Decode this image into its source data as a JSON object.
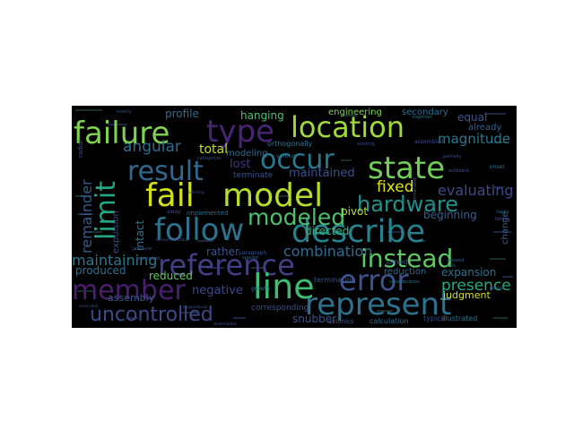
{
  "wordcloud": {
    "background": "#000000",
    "colormap": "viridis",
    "words": [
      {
        "text": "failure",
        "color": "#7fd34e"
      },
      {
        "text": "location",
        "color": "#9fda3a"
      },
      {
        "text": "type",
        "color": "#482475"
      },
      {
        "text": "occur",
        "color": "#2a788e"
      },
      {
        "text": "state",
        "color": "#6ece58"
      },
      {
        "text": "result",
        "color": "#31688e"
      },
      {
        "text": "limit",
        "color": "#22a884"
      },
      {
        "text": "fail",
        "color": "#d0e11c"
      },
      {
        "text": "model",
        "color": "#b5de2b"
      },
      {
        "text": "hardware",
        "color": "#20928c"
      },
      {
        "text": "follow",
        "color": "#2c728e"
      },
      {
        "text": "describe",
        "color": "#26828e"
      },
      {
        "text": "modeled",
        "color": "#4ac16d"
      },
      {
        "text": "reference",
        "color": "#433e85"
      },
      {
        "text": "instead",
        "color": "#5ec962"
      },
      {
        "text": "error",
        "color": "#3b528b"
      },
      {
        "text": "member",
        "color": "#481f70"
      },
      {
        "text": "line",
        "color": "#3dbc74"
      },
      {
        "text": "represent",
        "color": "#2c728e"
      },
      {
        "text": "uncontrolled",
        "color": "#3e4989"
      },
      {
        "text": "remainder",
        "color": "#365c8d"
      },
      {
        "text": "maintaining",
        "color": "#2a788e"
      },
      {
        "text": "combination",
        "color": "#2f6c8e"
      },
      {
        "text": "presence",
        "color": "#25ac82"
      },
      {
        "text": "fixed",
        "color": "#dde318"
      },
      {
        "text": "angular",
        "color": "#2f6c8e"
      },
      {
        "text": "total",
        "color": "#c2df23"
      },
      {
        "text": "hanging",
        "color": "#4ac16d"
      },
      {
        "text": "profile",
        "color": "#2f6c8e"
      },
      {
        "text": "engineering",
        "color": "#7fd34e"
      },
      {
        "text": "equal",
        "color": "#39568c"
      },
      {
        "text": "magnitude",
        "color": "#2a788e"
      },
      {
        "text": "evaluating",
        "color": "#3e4989"
      },
      {
        "text": "maintained",
        "color": "#3b528b"
      },
      {
        "text": "lost",
        "color": "#46327e"
      },
      {
        "text": "directed",
        "color": "#35b779"
      },
      {
        "text": "pivot",
        "color": "#b5de2b"
      },
      {
        "text": "beginning",
        "color": "#355f8d"
      },
      {
        "text": "produced",
        "color": "#2d708e"
      },
      {
        "text": "reduced",
        "color": "#5ec962"
      },
      {
        "text": "negative",
        "color": "#3e4989"
      },
      {
        "text": "rather",
        "color": "#3b528b"
      },
      {
        "text": "assembly",
        "color": "#375b8d"
      },
      {
        "text": "snubber",
        "color": "#3b528b"
      },
      {
        "text": "expansion",
        "color": "#2c728e"
      },
      {
        "text": "judgment",
        "color": "#d5e21a"
      },
      {
        "text": "reduction",
        "color": "#2f6c8e"
      },
      {
        "text": "corresponding",
        "color": "#3a538b"
      },
      {
        "text": "modeling",
        "color": "#2f6c8e"
      },
      {
        "text": "terminate",
        "color": "#3b528b"
      },
      {
        "text": "intact",
        "color": "#2c728e"
      },
      {
        "text": "change",
        "color": "#35608d"
      },
      {
        "text": "expulsion",
        "color": "#3e4989"
      },
      {
        "text": "secondary",
        "color": "#2f6c8e"
      },
      {
        "text": "already",
        "color": "#355f8d"
      },
      {
        "text": "orthogonally",
        "color": "#2c728e"
      },
      {
        "text": "implemented",
        "color": "#2f6c8e"
      },
      {
        "text": "termination",
        "color": "#3b528b"
      },
      {
        "text": "joined",
        "color": "#3b528b"
      },
      {
        "text": "typical",
        "color": "#3e4989"
      },
      {
        "text": "illustrated",
        "color": "#2c728e"
      },
      {
        "text": "calculation",
        "color": "#2f6c8e"
      },
      {
        "text": "avionics",
        "color": "#365c8d"
      },
      {
        "text": "assembled",
        "color": "#3e4989"
      },
      {
        "text": "paragraph",
        "color": "#3b528b"
      },
      {
        "text": "circumference",
        "color": "#3e4989"
      },
      {
        "text": "various",
        "color": "#2c728e"
      },
      {
        "text": "spaced",
        "color": "#2f6c8e"
      },
      {
        "text": "outboard",
        "color": "#3b528b"
      },
      {
        "text": "together",
        "color": "#2c728e"
      },
      {
        "text": "allowed",
        "color": "#355f8d"
      },
      {
        "text": "attempted",
        "color": "#3b528b"
      },
      {
        "text": "radial",
        "color": "#3b528b"
      },
      {
        "text": "growth",
        "color": "#2c728e"
      },
      {
        "text": "existing",
        "color": "#3e4989"
      },
      {
        "text": "categorize",
        "color": "#3b528b"
      },
      {
        "text": "away",
        "color": "#3e4989"
      },
      {
        "text": "pressure",
        "color": "#3b528b"
      },
      {
        "text": "anomalies",
        "color": "#3e4989"
      },
      {
        "text": "onset",
        "color": "#2f6c8e"
      },
      {
        "text": "associated",
        "color": "#3b528b"
      },
      {
        "text": "affecting",
        "color": "#3e4989"
      },
      {
        "text": "perpendicular",
        "color": "#3b528b"
      },
      {
        "text": "consideration",
        "color": "#2c728e"
      },
      {
        "text": "evenly",
        "color": "#3e4989"
      },
      {
        "text": "period",
        "color": "#3b528b"
      },
      {
        "text": "tasks",
        "color": "#2f6c8e"
      },
      {
        "text": "failed",
        "color": "#3e4989"
      },
      {
        "text": "commanded",
        "color": "#3b528b"
      },
      {
        "text": "multi",
        "color": "#2f6c8e"
      },
      {
        "text": "partially",
        "color": "#3e4989"
      }
    ]
  }
}
